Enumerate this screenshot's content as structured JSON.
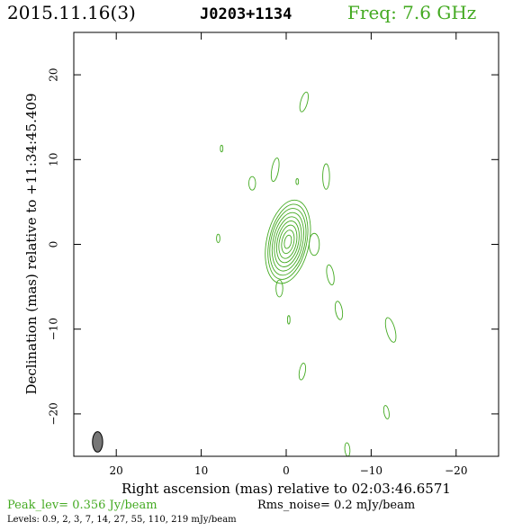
{
  "header": {
    "date": "2015.11.16(3)",
    "source": "J0203+1134",
    "freq": "Freq: 7.6 GHz"
  },
  "footer": {
    "peak": "Peak_lev=  0.356 Jy/beam",
    "rms": "Rms_noise=  0.2 mJy/beam",
    "levels": "Levels: 0.9,   2,   3,   7,  14,  27,  55, 110, 219 mJy/beam"
  },
  "colors": {
    "contour": "#44aa22",
    "accent_text": "#44aa22",
    "beam_fill": "#777777",
    "frame": "#000000"
  },
  "chart_data": {
    "type": "contour",
    "xlabel": "Right ascension (mas) relative to 02:03:46.6571",
    "ylabel": "Declination (mas) relative to +11:34:45.409",
    "xlim": [
      25,
      -25
    ],
    "ylim": [
      -25,
      25
    ],
    "xticks": [
      20,
      10,
      0,
      -10,
      -20
    ],
    "xtick_labels": [
      "20",
      "10",
      "0",
      "−10",
      "−20"
    ],
    "yticks": [
      20,
      10,
      0,
      -10,
      -20
    ],
    "ytick_labels": [
      "20",
      "10",
      "0",
      "−10",
      "−20"
    ],
    "levels_mJy": [
      0.9,
      2,
      3,
      7,
      14,
      27,
      55,
      110,
      219
    ],
    "peak_Jy_per_beam": 0.356,
    "rms_mJy_per_beam": 0.2,
    "core": {
      "x": -0.2,
      "y": 0.3,
      "contours": [
        {
          "rx": 2.5,
          "ry": 5.0,
          "angle": 12
        },
        {
          "rx": 2.2,
          "ry": 4.5,
          "angle": 12
        },
        {
          "rx": 2.0,
          "ry": 4.0,
          "angle": 12
        },
        {
          "rx": 1.75,
          "ry": 3.5,
          "angle": 12
        },
        {
          "rx": 1.5,
          "ry": 3.0,
          "angle": 12
        },
        {
          "rx": 1.25,
          "ry": 2.5,
          "angle": 12
        },
        {
          "rx": 1.0,
          "ry": 2.0,
          "angle": 12
        },
        {
          "rx": 0.7,
          "ry": 1.4,
          "angle": 12
        },
        {
          "rx": 0.4,
          "ry": 0.8,
          "angle": 12
        }
      ]
    },
    "blobs": [
      {
        "x": -2.1,
        "y": 16.8,
        "rx": 0.4,
        "ry": 1.2,
        "angle": 15
      },
      {
        "x": 7.6,
        "y": 11.3,
        "rx": 0.15,
        "ry": 0.4,
        "angle": 0
      },
      {
        "x": 1.3,
        "y": 8.8,
        "rx": 0.4,
        "ry": 1.4,
        "angle": 10
      },
      {
        "x": 4.0,
        "y": 7.2,
        "rx": 0.4,
        "ry": 0.8,
        "angle": 0
      },
      {
        "x": -1.3,
        "y": 7.4,
        "rx": 0.15,
        "ry": 0.35,
        "angle": 0
      },
      {
        "x": -4.7,
        "y": 8.0,
        "rx": 0.4,
        "ry": 1.5,
        "angle": 0
      },
      {
        "x": 8.0,
        "y": 0.7,
        "rx": 0.2,
        "ry": 0.5,
        "angle": 0
      },
      {
        "x": -3.3,
        "y": 0.0,
        "rx": 0.6,
        "ry": 1.3,
        "angle": 0
      },
      {
        "x": -5.2,
        "y": -3.6,
        "rx": 0.4,
        "ry": 1.2,
        "angle": -10
      },
      {
        "x": 0.8,
        "y": -5.2,
        "rx": 0.4,
        "ry": 1.0,
        "angle": 0
      },
      {
        "x": -6.2,
        "y": -7.8,
        "rx": 0.4,
        "ry": 1.1,
        "angle": -10
      },
      {
        "x": -0.3,
        "y": -8.9,
        "rx": 0.15,
        "ry": 0.5,
        "angle": 0
      },
      {
        "x": -12.3,
        "y": -10.1,
        "rx": 0.5,
        "ry": 1.5,
        "angle": -15
      },
      {
        "x": -1.9,
        "y": -15.0,
        "rx": 0.35,
        "ry": 1.0,
        "angle": 10
      },
      {
        "x": -11.8,
        "y": -19.8,
        "rx": 0.3,
        "ry": 0.8,
        "angle": -10
      },
      {
        "x": -7.2,
        "y": -24.2,
        "rx": 0.3,
        "ry": 0.8,
        "angle": -5
      }
    ],
    "beam": {
      "x": 22.2,
      "y": -23.3,
      "major": 2.4,
      "minor": 1.2,
      "pa": 0
    }
  }
}
